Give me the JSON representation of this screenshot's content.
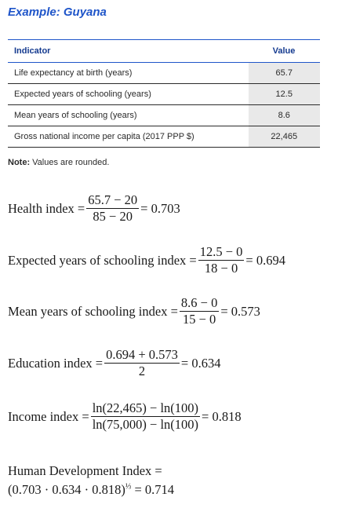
{
  "title": "Example: Guyana",
  "table": {
    "headers": [
      "Indicator",
      "Value"
    ],
    "rows": [
      {
        "indicator": "Life expectancy at birth (years)",
        "value": "65.7"
      },
      {
        "indicator": "Expected years of schooling (years)",
        "value": "12.5"
      },
      {
        "indicator": "Mean years of schooling (years)",
        "value": "8.6"
      },
      {
        "indicator": "Gross national income per capita (2017 PPP $)",
        "value": "22,465"
      }
    ]
  },
  "note": {
    "label": "Note:",
    "text": " Values are rounded."
  },
  "equations": {
    "health": {
      "lhs": "Health index =",
      "num": "65.7 − 20",
      "den": "85 − 20",
      "rhs": "= 0.703"
    },
    "expected": {
      "lhs": "Expected years of schooling index =",
      "num": "12.5 − 0",
      "den": "18 − 0",
      "rhs": "= 0.694"
    },
    "mean": {
      "lhs": "Mean years of schooling index =",
      "num": "8.6 − 0",
      "den": "15 − 0",
      "rhs": "= 0.573"
    },
    "education": {
      "lhs": "Education index =",
      "num": "0.694 + 0.573",
      "den": "2",
      "rhs": "= 0.634"
    },
    "income": {
      "lhs": "Income index =",
      "num": "ln(22,465) − ln(100)",
      "den": "ln(75,000) − ln(100)",
      "rhs": "= 0.818"
    },
    "hdi": {
      "line1": "Human Development Index =",
      "line2": "(0.703 · 0.634 · 0.818)",
      "exponent": "⅓",
      "line2_rhs": " = 0.714"
    }
  }
}
